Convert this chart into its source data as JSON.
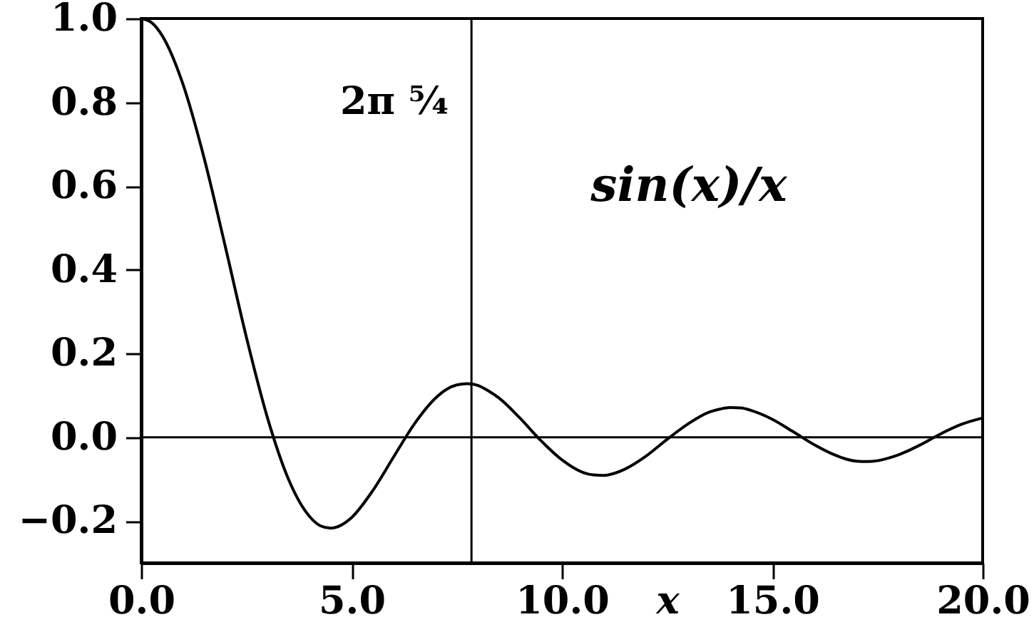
{
  "chart_data": {
    "type": "line",
    "xlabel": "x",
    "x": [
      0,
      0.25,
      0.5,
      1,
      1.5,
      2,
      2.5,
      3,
      3.5,
      4,
      4.25,
      4.5,
      4.75,
      5,
      5.5,
      6,
      6.5,
      7,
      7.25,
      7.5,
      7.75,
      8,
      8.25,
      8.5,
      9,
      9.5,
      10,
      10.5,
      10.75,
      11,
      11.25,
      11.5,
      12,
      12.5,
      13,
      13.5,
      13.75,
      14,
      14.25,
      14.5,
      15,
      15.5,
      16,
      16.5,
      16.75,
      17,
      17.25,
      17.5,
      17.75,
      18,
      18.5,
      19,
      19.5,
      20
    ],
    "series": [
      {
        "color": "#000000",
        "values": [
          1.0,
          0.99,
          0.959,
          0.841,
          0.665,
          0.455,
          0.239,
          0.047,
          -0.1,
          -0.189,
          -0.211,
          -0.217,
          -0.21,
          -0.192,
          -0.128,
          -0.047,
          0.033,
          0.094,
          0.114,
          0.125,
          0.128,
          0.124,
          0.111,
          0.094,
          0.046,
          -0.008,
          -0.054,
          -0.084,
          -0.09,
          -0.091,
          -0.086,
          -0.076,
          -0.045,
          -0.005,
          0.032,
          0.06,
          0.067,
          0.071,
          0.07,
          0.064,
          0.043,
          0.013,
          -0.018,
          -0.043,
          -0.052,
          -0.057,
          -0.058,
          -0.056,
          -0.05,
          -0.042,
          -0.019,
          0.008,
          0.031,
          0.046
        ]
      }
    ],
    "xlim": [
      0,
      20
    ],
    "ylim": [
      -0.3,
      1.0
    ],
    "xticks": [
      {
        "value": 0,
        "label": "0.0"
      },
      {
        "value": 5,
        "label": "5.0"
      },
      {
        "value": 10,
        "label": "10.0"
      },
      {
        "value": 15,
        "label": "15.0"
      },
      {
        "value": 20,
        "label": "20.0"
      }
    ],
    "yticks": [
      {
        "value": -0.2,
        "label": "−0.2"
      },
      {
        "value": 0,
        "label": "0.0"
      },
      {
        "value": 0.2,
        "label": "0.2"
      },
      {
        "value": 0.4,
        "label": "0.4"
      },
      {
        "value": 0.6,
        "label": "0.6"
      },
      {
        "value": 0.8,
        "label": "0.8"
      },
      {
        "value": 1,
        "label": "1.0"
      }
    ],
    "ref_lines": [
      {
        "axis": "x",
        "value": 7.85,
        "label": "2π ⁵⁄₄",
        "color": "#000000"
      },
      {
        "axis": "y",
        "value": 0,
        "color": "#000000"
      }
    ],
    "annotations": [
      "sin(x)/x"
    ],
    "grid": false
  }
}
